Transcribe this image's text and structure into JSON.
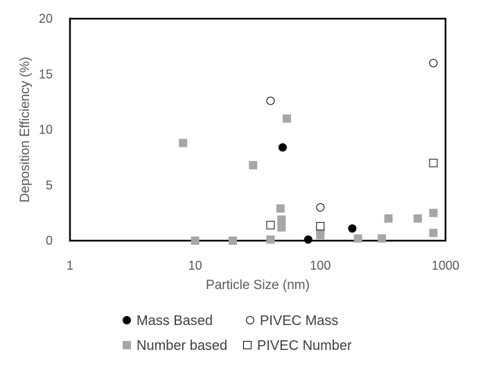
{
  "chart_data": {
    "type": "scatter",
    "title": "",
    "xlabel": "Particle Size (nm)",
    "ylabel": "Deposition Efficiency (%)",
    "xscale": "log",
    "xlim": [
      1,
      1000
    ],
    "ylim": [
      0,
      20
    ],
    "xticks": [
      1,
      10,
      100,
      1000
    ],
    "xtick_labels": [
      "1",
      "10",
      "100",
      "1000"
    ],
    "yticks": [
      0,
      5,
      10,
      15,
      20
    ],
    "ytick_labels": [
      "0",
      "5",
      "10",
      "15",
      "20"
    ],
    "grid": false,
    "legend_position": "bottom",
    "series": [
      {
        "name": "Mass Based",
        "marker": "filled-circle",
        "color": "#000000",
        "points": [
          {
            "x": 50,
            "y": 8.4
          },
          {
            "x": 80,
            "y": 0.1
          },
          {
            "x": 180,
            "y": 1.1
          }
        ]
      },
      {
        "name": "PIVEC Mass",
        "marker": "open-circle",
        "color": "#000000",
        "points": [
          {
            "x": 40,
            "y": 12.6
          },
          {
            "x": 100,
            "y": 3.0
          },
          {
            "x": 800,
            "y": 16.0
          }
        ]
      },
      {
        "name": "Number based",
        "marker": "filled-square",
        "color": "#a6a6a6",
        "points": [
          {
            "x": 8,
            "y": 8.8
          },
          {
            "x": 10,
            "y": 0.0
          },
          {
            "x": 20,
            "y": 0.0
          },
          {
            "x": 29,
            "y": 6.8
          },
          {
            "x": 40,
            "y": 0.1
          },
          {
            "x": 48,
            "y": 2.9
          },
          {
            "x": 49,
            "y": 1.9
          },
          {
            "x": 49,
            "y": 1.6
          },
          {
            "x": 49,
            "y": 1.2
          },
          {
            "x": 54,
            "y": 11.0
          },
          {
            "x": 100,
            "y": 0.8
          },
          {
            "x": 100,
            "y": 0.5
          },
          {
            "x": 200,
            "y": 0.2
          },
          {
            "x": 310,
            "y": 0.2
          },
          {
            "x": 350,
            "y": 2.0
          },
          {
            "x": 600,
            "y": 2.0
          },
          {
            "x": 800,
            "y": 2.5
          },
          {
            "x": 800,
            "y": 0.7
          }
        ]
      },
      {
        "name": "PIVEC Number",
        "marker": "open-square",
        "color": "#000000",
        "points": [
          {
            "x": 40,
            "y": 1.4
          },
          {
            "x": 100,
            "y": 1.3
          },
          {
            "x": 800,
            "y": 7.0
          }
        ]
      }
    ]
  }
}
